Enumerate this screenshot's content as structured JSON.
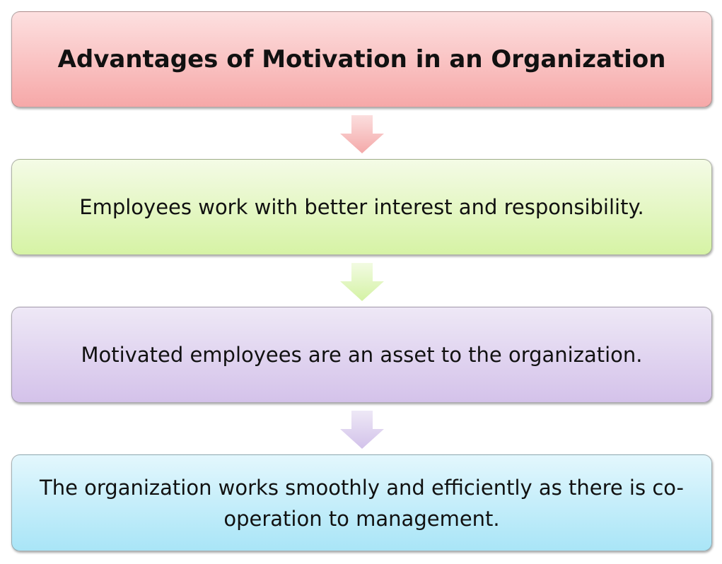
{
  "diagram": {
    "title": "Advantages of Motivation in an Organization",
    "steps": [
      {
        "text": "Employees work with better interest and responsibility."
      },
      {
        "text": "Motivated employees are an asset to the organization."
      },
      {
        "text": "The organization works smoothly and efficiently as there is co-operation to management."
      }
    ],
    "colors": {
      "title_box": "#f6a8a8",
      "step1_box": "#d6f3a5",
      "step2_box": "#d4c2ea",
      "step3_box": "#a9e5f7",
      "arrow1": "#f4a9a9",
      "arrow2": "#d4f2a4",
      "arrow3": "#d2c2ea"
    }
  }
}
